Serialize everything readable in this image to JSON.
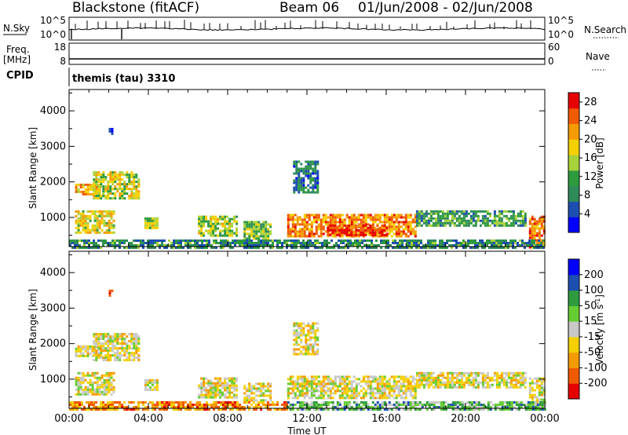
{
  "header": {
    "radar": "Blackstone (fitACF)",
    "beam": "Beam 06",
    "date_range": "01/Jun/2008 - 02/Jun/2008"
  },
  "panels": {
    "nsky": {
      "left_label": "N.Sky",
      "right_label": "N.Search",
      "left_ticks": [
        "10^5",
        "10^0"
      ],
      "right_ticks": [
        "10^5",
        "10^0"
      ]
    },
    "freq": {
      "left_label_line1": "Freq.",
      "left_label_line2": "[MHz]",
      "right_label": "Nave",
      "left_ticks": [
        "18",
        "8"
      ],
      "right_ticks": [
        "60",
        "0"
      ]
    },
    "cpid": {
      "label": "CPID",
      "program": "themis (tau) 3310"
    }
  },
  "colors": {
    "power": [
      "#0000ff",
      "#1d4fb0",
      "#2f8a5a",
      "#2e9b3e",
      "#a8d23a",
      "#f5d000",
      "#f59b00",
      "#f05a00",
      "#e60000"
    ],
    "velocity": [
      "#e60000",
      "#f05a00",
      "#f59b00",
      "#f5d000",
      "#c8c8c8",
      "#66cc33",
      "#2e9b3e",
      "#1d4fb0",
      "#0000ff"
    ],
    "ground_scatter": "#c8c8c8"
  },
  "chart_data": [
    {
      "type": "heatmap",
      "name": "power",
      "xlabel": "",
      "ylabel": "Slant Range [km]",
      "x_ticks": [
        "00:00",
        "04:00",
        "08:00",
        "12:00",
        "16:00",
        "20:00",
        "00:00"
      ],
      "x_range_hours": [
        0,
        24
      ],
      "y_ticks": [
        1000,
        2000,
        3000,
        4000
      ],
      "ylim": [
        180,
        4600
      ],
      "colorbar_label": "Power [dB]",
      "colorbar_ticks": [
        "4",
        "8",
        "12",
        "16",
        "20",
        "24",
        "28"
      ],
      "colorbar_range": [
        0,
        30
      ],
      "regions": [
        {
          "t0": 0.3,
          "t1": 1.6,
          "r0": 1650,
          "r1": 1950,
          "level": 0.7
        },
        {
          "t0": 1.2,
          "t1": 3.5,
          "r0": 1550,
          "r1": 2300,
          "level": 0.55
        },
        {
          "t0": 0.3,
          "t1": 2.3,
          "r0": 600,
          "r1": 1200,
          "level": 0.6
        },
        {
          "t0": 3.8,
          "t1": 4.5,
          "r0": 700,
          "r1": 1000,
          "level": 0.55
        },
        {
          "t0": 6.5,
          "t1": 8.5,
          "r0": 500,
          "r1": 1050,
          "level": 0.5
        },
        {
          "t0": 8.8,
          "t1": 10.2,
          "r0": 400,
          "r1": 900,
          "level": 0.45
        },
        {
          "t0": 11.0,
          "t1": 17.5,
          "r0": 500,
          "r1": 1100,
          "level": 0.75
        },
        {
          "t0": 13.0,
          "t1": 16.0,
          "r0": 500,
          "r1": 800,
          "level": 0.9
        },
        {
          "t0": 17.5,
          "t1": 23.0,
          "r0": 800,
          "r1": 1200,
          "level": 0.35
        },
        {
          "t0": 23.2,
          "t1": 24.0,
          "r0": 180,
          "r1": 1050,
          "level": 0.8
        },
        {
          "t0": 0.0,
          "t1": 24.0,
          "r0": 180,
          "r1": 380,
          "level": 0.3
        },
        {
          "t0": 11.3,
          "t1": 12.6,
          "r0": 1700,
          "r1": 2600,
          "level": 0.25
        },
        {
          "t0": 2.0,
          "t1": 2.2,
          "r0": 3380,
          "r1": 3520,
          "level": 0.15
        }
      ]
    },
    {
      "type": "heatmap",
      "name": "velocity",
      "xlabel": "Time UT",
      "ylabel": "Slant Range [km]",
      "x_ticks": [
        "00:00",
        "04:00",
        "08:00",
        "12:00",
        "16:00",
        "20:00",
        "00:00"
      ],
      "x_range_hours": [
        0,
        24
      ],
      "y_ticks": [
        1000,
        2000,
        3000,
        4000
      ],
      "ylim": [
        180,
        4600
      ],
      "colorbar_label": "Velocity [m s^-1]",
      "colorbar_ticks": [
        "-200",
        "-100",
        "-50",
        "-15",
        "15",
        "50",
        "100",
        "200"
      ],
      "regions": [
        {
          "t0": 0.3,
          "t1": 1.6,
          "r0": 1650,
          "r1": 1950,
          "level": 0.45
        },
        {
          "t0": 1.2,
          "t1": 3.5,
          "r0": 1550,
          "r1": 2300,
          "level": 0.45
        },
        {
          "t0": 0.3,
          "t1": 2.3,
          "r0": 600,
          "r1": 1200,
          "level": 0.45
        },
        {
          "t0": 3.8,
          "t1": 4.5,
          "r0": 700,
          "r1": 1000,
          "level": 0.45
        },
        {
          "t0": 6.5,
          "t1": 8.5,
          "r0": 500,
          "r1": 1050,
          "level": 0.45
        },
        {
          "t0": 8.8,
          "t1": 10.2,
          "r0": 400,
          "r1": 900,
          "level": 0.45
        },
        {
          "t0": 11.0,
          "t1": 17.5,
          "r0": 500,
          "r1": 1100,
          "level": 0.45
        },
        {
          "t0": 17.5,
          "t1": 23.0,
          "r0": 800,
          "r1": 1200,
          "level": 0.45
        },
        {
          "t0": 23.2,
          "t1": 24.0,
          "r0": 180,
          "r1": 1050,
          "level": 0.45
        },
        {
          "t0": 0.0,
          "t1": 11.0,
          "r0": 180,
          "r1": 380,
          "level": 0.25
        },
        {
          "t0": 11.0,
          "t1": 24.0,
          "r0": 180,
          "r1": 380,
          "level": 0.65
        },
        {
          "t0": 11.3,
          "t1": 12.6,
          "r0": 1700,
          "r1": 2600,
          "level": 0.45
        },
        {
          "t0": 2.0,
          "t1": 2.2,
          "r0": 3380,
          "r1": 3520,
          "level": 0.05
        }
      ]
    }
  ]
}
